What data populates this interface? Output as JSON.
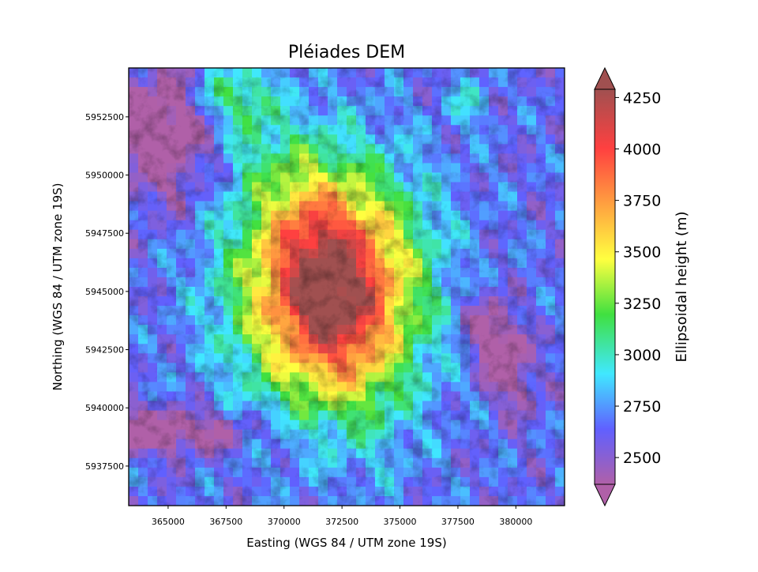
{
  "chart_data": {
    "type": "heatmap",
    "title": "Pléiades DEM",
    "xlabel": "Easting (WGS 84 / UTM zone 19S)",
    "ylabel": "Northing (WGS 84 / UTM zone 19S)",
    "xlim": [
      363300,
      382100
    ],
    "ylim": [
      5935800,
      5954600
    ],
    "xticks": [
      {
        "value": 365000,
        "label": "365000"
      },
      {
        "value": 367500,
        "label": "367500"
      },
      {
        "value": 370000,
        "label": "370000"
      },
      {
        "value": 372500,
        "label": "372500"
      },
      {
        "value": 375000,
        "label": "375000"
      },
      {
        "value": 377500,
        "label": "377500"
      },
      {
        "value": 380000,
        "label": "380000"
      }
    ],
    "yticks": [
      {
        "value": 5937500,
        "label": "5937500"
      },
      {
        "value": 5940000,
        "label": "5940000"
      },
      {
        "value": 5942500,
        "label": "5942500"
      },
      {
        "value": 5945000,
        "label": "5945000"
      },
      {
        "value": 5947500,
        "label": "5947500"
      },
      {
        "value": 5950000,
        "label": "5950000"
      },
      {
        "value": 5952500,
        "label": "5952500"
      }
    ],
    "colorbar": {
      "label": "Ellipsoidal height (m)",
      "range": [
        2370,
        4290
      ],
      "extend": "both",
      "ticks": [
        {
          "value": 2500,
          "label": "2500"
        },
        {
          "value": 2750,
          "label": "2750"
        },
        {
          "value": 3000,
          "label": "3000"
        },
        {
          "value": 3250,
          "label": "3250"
        },
        {
          "value": 3500,
          "label": "3500"
        },
        {
          "value": 3750,
          "label": "3750"
        },
        {
          "value": 4000,
          "label": "4000"
        },
        {
          "value": 4250,
          "label": "4250"
        }
      ],
      "colors": [
        "#b060a8",
        "#6060ff",
        "#40e8ff",
        "#40e040",
        "#ffff40",
        "#ffa040",
        "#ff4040",
        "#a05050"
      ]
    },
    "colormap": [
      "#b060a8",
      "#6060ff",
      "#40e8ff",
      "#40e040",
      "#ffff40",
      "#ffa040",
      "#ff4040",
      "#a05050"
    ]
  }
}
